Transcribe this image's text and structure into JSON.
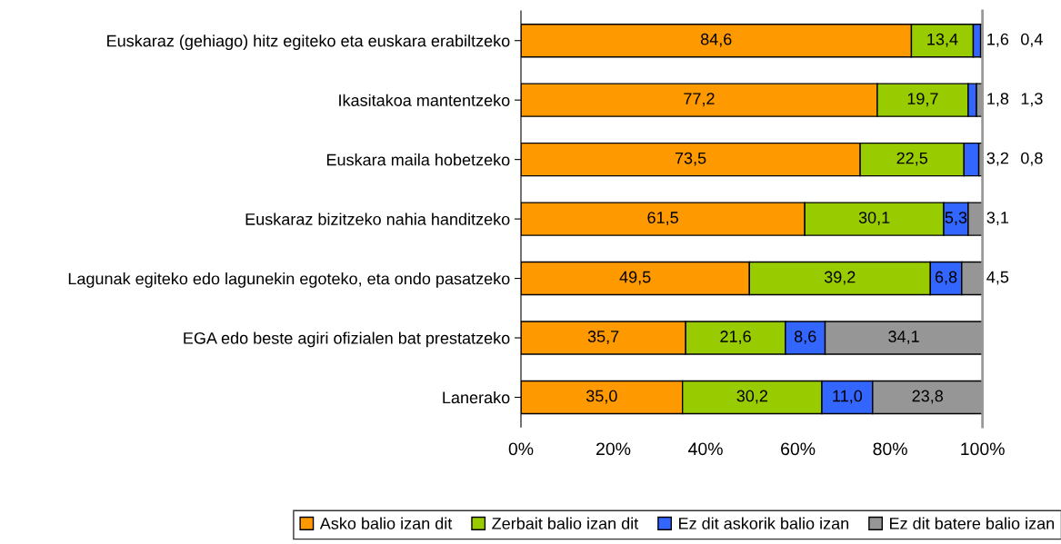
{
  "chart_data": {
    "type": "bar",
    "orientation": "horizontal",
    "stacked": true,
    "categories": [
      "Euskaraz (gehiago) hitz egiteko eta euskara erabiltzeko",
      "Ikasitakoa mantentzeko",
      "Euskara maila hobetzeko",
      "Euskaraz bizitzeko nahia handitzeko",
      "Lagunak egiteko edo lagunekin egoteko, eta ondo pasatzeko",
      "EGA edo beste agiri ofizialen bat prestatzeko",
      "Lanerako"
    ],
    "series": [
      {
        "name": "Asko balio izan dit",
        "color": "#ff9900",
        "values": [
          84.6,
          77.2,
          73.5,
          61.5,
          49.5,
          35.7,
          35.0
        ],
        "value_labels": [
          "84,6",
          "77,2",
          "73,5",
          "61,5",
          "49,5",
          "35,7",
          "35,0"
        ]
      },
      {
        "name": "Zerbait balio izan dit",
        "color": "#99cc00",
        "values": [
          13.4,
          19.7,
          22.5,
          30.1,
          39.2,
          21.6,
          30.2
        ],
        "value_labels": [
          "13,4",
          "19,7",
          "22,5",
          "30,1",
          "39,2",
          "21,6",
          "30,2"
        ]
      },
      {
        "name": "Ez dit askorik balio izan",
        "color": "#3366ff",
        "values": [
          1.6,
          1.8,
          3.2,
          5.3,
          6.8,
          8.6,
          11.0
        ],
        "value_labels": [
          "1,6",
          "1,8",
          "3,2",
          "5,3",
          "6,8",
          "8,6",
          "11,0"
        ]
      },
      {
        "name": "Ez dit batere balio izan",
        "color": "#969696",
        "values": [
          0.4,
          1.3,
          0.8,
          3.1,
          4.5,
          34.1,
          23.8
        ],
        "value_labels": [
          "0,4",
          "1,3",
          "0,8",
          "3,1",
          "4,5",
          "34,1",
          "23,8"
        ]
      }
    ],
    "xlim": [
      0,
      100
    ],
    "xticks": [
      {
        "value": 0,
        "label": "0%"
      },
      {
        "value": 20,
        "label": "20%"
      },
      {
        "value": 40,
        "label": "40%"
      },
      {
        "value": 60,
        "label": "60%"
      },
      {
        "value": 80,
        "label": "80%"
      },
      {
        "value": 100,
        "label": "100%"
      }
    ],
    "grid": false,
    "legend": "bottom"
  }
}
